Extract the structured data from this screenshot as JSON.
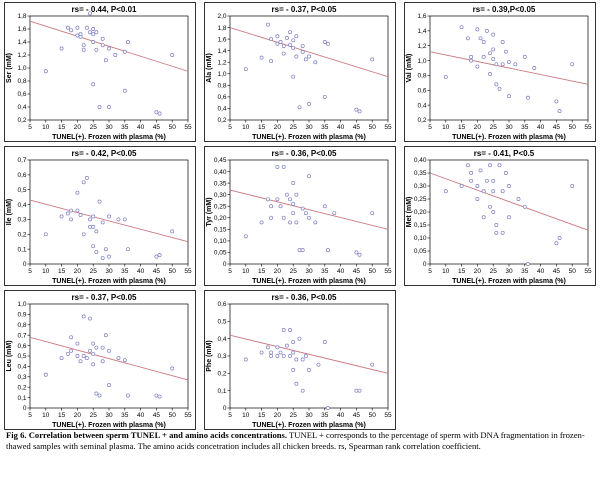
{
  "chart_data": [
    {
      "type": "scatter",
      "title": "rs= - 0.44, P<0.01",
      "xlabel": "TUNEL(+). Frozen with plasma (%)",
      "ylabel": "Ser (mM)",
      "xlim": [
        5,
        55
      ],
      "ylim": [
        0.2,
        1.8
      ],
      "xticks": [
        "5",
        "10",
        "15",
        "20",
        "25",
        "30",
        "35",
        "40",
        "45",
        "50",
        "55"
      ],
      "yticks": [
        "0,2",
        "0,4",
        "0,6",
        "0,8",
        "1,0",
        "1,2",
        "1,4",
        "1,6",
        "1,8"
      ],
      "fit": [
        [
          5,
          1.72
        ],
        [
          55,
          0.95
        ]
      ],
      "points": [
        [
          10,
          0.95
        ],
        [
          15,
          1.3
        ],
        [
          17,
          1.62
        ],
        [
          18,
          1.58
        ],
        [
          20,
          1.62
        ],
        [
          20,
          1.5
        ],
        [
          21,
          1.52
        ],
        [
          21,
          1.48
        ],
        [
          22,
          1.35
        ],
        [
          22,
          1.28
        ],
        [
          23,
          1.62
        ],
        [
          24,
          1.55
        ],
        [
          24,
          1.84
        ],
        [
          25,
          1.6
        ],
        [
          25,
          1.52
        ],
        [
          25,
          1.4
        ],
        [
          25,
          0.75
        ],
        [
          26,
          1.28
        ],
        [
          26,
          1.55
        ],
        [
          27,
          0.4
        ],
        [
          28,
          1.45
        ],
        [
          28,
          1.35
        ],
        [
          29,
          1.12
        ],
        [
          30,
          1.3
        ],
        [
          30,
          0.4
        ],
        [
          32,
          1.2
        ],
        [
          35,
          1.25
        ],
        [
          35,
          0.65
        ],
        [
          36,
          1.4
        ],
        [
          45,
          0.32
        ],
        [
          46,
          0.3
        ],
        [
          50,
          1.2
        ]
      ]
    },
    {
      "type": "scatter",
      "title": "rs= - 0.37, P<0.05",
      "xlabel": "TUNEL(+). Frozen with plasma (%)",
      "ylabel": "Ala (mM)",
      "xlim": [
        5,
        55
      ],
      "ylim": [
        0.2,
        2.0
      ],
      "xticks": [
        "5",
        "10",
        "15",
        "20",
        "25",
        "30",
        "35",
        "40",
        "45",
        "50",
        "55"
      ],
      "yticks": [
        "0,2",
        "0,4",
        "0,6",
        "0,8",
        "1,0",
        "1,2",
        "1,4",
        "1,6",
        "1,8",
        "2,0"
      ],
      "fit": [
        [
          5,
          1.8
        ],
        [
          55,
          0.95
        ]
      ],
      "points": [
        [
          10,
          1.08
        ],
        [
          15,
          1.28
        ],
        [
          17,
          1.85
        ],
        [
          18,
          1.6
        ],
        [
          18,
          1.22
        ],
        [
          20,
          1.65
        ],
        [
          20,
          1.52
        ],
        [
          21,
          1.55
        ],
        [
          22,
          1.48
        ],
        [
          22,
          1.35
        ],
        [
          23,
          1.62
        ],
        [
          24,
          1.5
        ],
        [
          24,
          1.72
        ],
        [
          25,
          1.58
        ],
        [
          25,
          1.45
        ],
        [
          25,
          0.95
        ],
        [
          26,
          1.3
        ],
        [
          26,
          1.65
        ],
        [
          27,
          0.42
        ],
        [
          28,
          1.48
        ],
        [
          28,
          1.38
        ],
        [
          29,
          1.25
        ],
        [
          30,
          1.3
        ],
        [
          30,
          0.48
        ],
        [
          32,
          1.2
        ],
        [
          35,
          1.55
        ],
        [
          35,
          0.6
        ],
        [
          36,
          1.52
        ],
        [
          45,
          0.38
        ],
        [
          46,
          0.35
        ],
        [
          50,
          1.25
        ]
      ]
    },
    {
      "type": "scatter",
      "title": "rs= - 0.39,P<0.05",
      "xlabel": "TUNEL(+). Frozen with plasma (%)",
      "ylabel": "Val (mM)",
      "xlim": [
        5,
        55
      ],
      "ylim": [
        0.2,
        1.6
      ],
      "xticks": [
        "5",
        "10",
        "15",
        "20",
        "25",
        "30",
        "35",
        "40",
        "45",
        "50",
        "55"
      ],
      "yticks": [
        "0,2",
        "0,4",
        "0,6",
        "0,8",
        "1,0",
        "1,2",
        "1,4",
        "1,6"
      ],
      "fit": [
        [
          5,
          1.12
        ],
        [
          55,
          0.68
        ]
      ],
      "points": [
        [
          10,
          0.78
        ],
        [
          15,
          1.45
        ],
        [
          17,
          1.3
        ],
        [
          18,
          1.05
        ],
        [
          18,
          1.0
        ],
        [
          20,
          1.42
        ],
        [
          20,
          0.92
        ],
        [
          21,
          1.3
        ],
        [
          22,
          1.25
        ],
        [
          22,
          1.05
        ],
        [
          23,
          1.4
        ],
        [
          24,
          1.1
        ],
        [
          24,
          0.82
        ],
        [
          25,
          1.35
        ],
        [
          25,
          1.15
        ],
        [
          25,
          1.02
        ],
        [
          26,
          0.95
        ],
        [
          26,
          0.68
        ],
        [
          27,
          0.62
        ],
        [
          28,
          1.25
        ],
        [
          28,
          0.95
        ],
        [
          29,
          1.12
        ],
        [
          30,
          0.98
        ],
        [
          30,
          0.52
        ],
        [
          32,
          0.95
        ],
        [
          35,
          1.05
        ],
        [
          36,
          0.5
        ],
        [
          38,
          0.9
        ],
        [
          45,
          0.45
        ],
        [
          46,
          0.32
        ],
        [
          50,
          0.95
        ]
      ]
    },
    {
      "type": "scatter",
      "title": "rs= - 0.42, P<0.05",
      "xlabel": "TUNEL(+). Frozen with plasma (%)",
      "ylabel": "Ile (mM)",
      "xlim": [
        5,
        55
      ],
      "ylim": [
        0.0,
        0.7
      ],
      "xticks": [
        "5",
        "10",
        "15",
        "20",
        "25",
        "30",
        "35",
        "40",
        "45",
        "50",
        "55"
      ],
      "yticks": [
        "0",
        "0,1",
        "0,2",
        "0,3",
        "0,4",
        "0,5",
        "0,6",
        "0,7"
      ],
      "fit": [
        [
          5,
          0.43
        ],
        [
          55,
          0.15
        ]
      ],
      "points": [
        [
          10,
          0.2
        ],
        [
          15,
          0.32
        ],
        [
          17,
          0.34
        ],
        [
          18,
          0.36
        ],
        [
          18,
          0.3
        ],
        [
          20,
          0.48
        ],
        [
          20,
          0.36
        ],
        [
          21,
          0.33
        ],
        [
          22,
          0.55
        ],
        [
          22,
          0.2
        ],
        [
          23,
          0.58
        ],
        [
          24,
          0.3
        ],
        [
          24,
          0.25
        ],
        [
          25,
          0.32
        ],
        [
          25,
          0.25
        ],
        [
          25,
          0.12
        ],
        [
          26,
          0.22
        ],
        [
          26,
          0.08
        ],
        [
          27,
          0.42
        ],
        [
          28,
          0.28
        ],
        [
          28,
          0.04
        ],
        [
          29,
          0.1
        ],
        [
          30,
          0.32
        ],
        [
          30,
          0.05
        ],
        [
          33,
          0.3
        ],
        [
          35,
          0.3
        ],
        [
          36,
          0.1
        ],
        [
          45,
          0.05
        ],
        [
          46,
          0.06
        ],
        [
          50,
          0.22
        ]
      ]
    },
    {
      "type": "scatter",
      "title": "rs= - 0.36, P<0.05",
      "xlabel": "TUNEL(+). Frozen with plasma (%)",
      "ylabel": "Tyr (mM)",
      "xlim": [
        5,
        55
      ],
      "ylim": [
        0.0,
        0.45
      ],
      "xticks": [
        "5",
        "10",
        "15",
        "20",
        "25",
        "30",
        "35",
        "40",
        "45",
        "50",
        "55"
      ],
      "yticks": [
        "0",
        "0,05",
        "0,10",
        "0,15",
        "0,20",
        "0,25",
        "0,30",
        "0,35",
        "0,40",
        "0,45"
      ],
      "fit": [
        [
          5,
          0.32
        ],
        [
          55,
          0.15
        ]
      ],
      "points": [
        [
          10,
          0.12
        ],
        [
          15,
          0.18
        ],
        [
          17,
          0.28
        ],
        [
          18,
          0.25
        ],
        [
          18,
          0.2
        ],
        [
          20,
          0.42
        ],
        [
          20,
          0.28
        ],
        [
          21,
          0.25
        ],
        [
          22,
          0.42
        ],
        [
          22,
          0.2
        ],
        [
          23,
          0.3
        ],
        [
          24,
          0.28
        ],
        [
          24,
          0.18
        ],
        [
          25,
          0.35
        ],
        [
          25,
          0.26
        ],
        [
          25,
          0.22
        ],
        [
          26,
          0.18
        ],
        [
          26,
          0.3
        ],
        [
          27,
          0.06
        ],
        [
          28,
          0.24
        ],
        [
          28,
          0.06
        ],
        [
          29,
          0.22
        ],
        [
          30,
          0.38
        ],
        [
          30,
          0.2
        ],
        [
          32,
          0.18
        ],
        [
          35,
          0.25
        ],
        [
          36,
          0.06
        ],
        [
          38,
          0.22
        ],
        [
          45,
          0.05
        ],
        [
          46,
          0.04
        ],
        [
          50,
          0.22
        ]
      ]
    },
    {
      "type": "scatter",
      "title": "rs= - 0.41, P<0.5",
      "xlabel": "TUNEL(+). Frozen with plasma (%)",
      "ylabel": "Met (mM)",
      "xlim": [
        5,
        55
      ],
      "ylim": [
        0.0,
        0.4
      ],
      "xticks": [
        "5",
        "10",
        "15",
        "20",
        "25",
        "30",
        "35",
        "40",
        "45",
        "50",
        "55"
      ],
      "yticks": [
        "0",
        "0,05",
        "0,10",
        "0,15",
        "0,20",
        "0,25",
        "0,30",
        "0,35",
        "0,40"
      ],
      "fit": [
        [
          5,
          0.35
        ],
        [
          55,
          0.13
        ]
      ],
      "points": [
        [
          10,
          0.28
        ],
        [
          15,
          0.3
        ],
        [
          17,
          0.38
        ],
        [
          18,
          0.32
        ],
        [
          18,
          0.35
        ],
        [
          20,
          0.3
        ],
        [
          20,
          0.25
        ],
        [
          21,
          0.36
        ],
        [
          22,
          0.28
        ],
        [
          22,
          0.18
        ],
        [
          23,
          0.32
        ],
        [
          24,
          0.22
        ],
        [
          24,
          0.38
        ],
        [
          25,
          0.32
        ],
        [
          25,
          0.28
        ],
        [
          25,
          0.2
        ],
        [
          26,
          0.15
        ],
        [
          26,
          0.12
        ],
        [
          27,
          0.38
        ],
        [
          28,
          0.28
        ],
        [
          28,
          0.12
        ],
        [
          29,
          0.35
        ],
        [
          30,
          0.3
        ],
        [
          30,
          0.18
        ],
        [
          33,
          0.25
        ],
        [
          35,
          0.22
        ],
        [
          36,
          0.0
        ],
        [
          45,
          0.08
        ],
        [
          46,
          0.1
        ],
        [
          50,
          0.3
        ]
      ]
    },
    {
      "type": "scatter",
      "title": "rs= - 0.37, P<0.05",
      "xlabel": "TUNEL(+). Frozen with plasma (%)",
      "ylabel": "Leu (mM)",
      "xlim": [
        5,
        55
      ],
      "ylim": [
        0.0,
        1.0
      ],
      "xticks": [
        "5",
        "10",
        "15",
        "20",
        "25",
        "30",
        "35",
        "40",
        "45",
        "50",
        "55"
      ],
      "yticks": [
        "0",
        "0,1",
        "0,2",
        "0,3",
        "0,4",
        "0,5",
        "0,6",
        "0,7",
        "0,8",
        "0,9",
        "1,0"
      ],
      "fit": [
        [
          5,
          0.68
        ],
        [
          55,
          0.27
        ]
      ],
      "points": [
        [
          10,
          0.32
        ],
        [
          15,
          0.48
        ],
        [
          17,
          0.52
        ],
        [
          18,
          0.68
        ],
        [
          18,
          0.55
        ],
        [
          20,
          0.62
        ],
        [
          20,
          0.5
        ],
        [
          21,
          0.45
        ],
        [
          22,
          0.88
        ],
        [
          22,
          0.5
        ],
        [
          23,
          0.48
        ],
        [
          24,
          0.86
        ],
        [
          24,
          0.55
        ],
        [
          25,
          0.62
        ],
        [
          25,
          0.52
        ],
        [
          25,
          0.42
        ],
        [
          26,
          0.58
        ],
        [
          26,
          0.14
        ],
        [
          27,
          0.12
        ],
        [
          28,
          0.58
        ],
        [
          28,
          0.45
        ],
        [
          29,
          0.7
        ],
        [
          30,
          0.22
        ],
        [
          30,
          0.55
        ],
        [
          33,
          0.48
        ],
        [
          35,
          0.46
        ],
        [
          36,
          0.12
        ],
        [
          45,
          0.12
        ],
        [
          46,
          0.11
        ],
        [
          50,
          0.38
        ]
      ]
    },
    {
      "type": "scatter",
      "title": "rs= - 0.36, P<0.05",
      "xlabel": "TUNEL(+). Frozen with plasma (%)",
      "ylabel": "Phe (mM)",
      "xlim": [
        5,
        55
      ],
      "ylim": [
        0.0,
        0.6
      ],
      "xticks": [
        "5",
        "10",
        "15",
        "20",
        "25",
        "30",
        "35",
        "40",
        "45",
        "50",
        "55"
      ],
      "yticks": [
        "0",
        "0,1",
        "0,2",
        "0,3",
        "0,4",
        "0,5",
        "0,6"
      ],
      "fit": [
        [
          5,
          0.42
        ],
        [
          55,
          0.2
        ]
      ],
      "points": [
        [
          10,
          0.28
        ],
        [
          15,
          0.32
        ],
        [
          17,
          0.35
        ],
        [
          18,
          0.32
        ],
        [
          18,
          0.3
        ],
        [
          20,
          0.35
        ],
        [
          20,
          0.3
        ],
        [
          21,
          0.32
        ],
        [
          22,
          0.45
        ],
        [
          22,
          0.3
        ],
        [
          23,
          0.36
        ],
        [
          24,
          0.45
        ],
        [
          24,
          0.3
        ],
        [
          25,
          0.38
        ],
        [
          25,
          0.32
        ],
        [
          25,
          0.22
        ],
        [
          26,
          0.28
        ],
        [
          26,
          0.14
        ],
        [
          27,
          0.4
        ],
        [
          28,
          0.28
        ],
        [
          28,
          0.1
        ],
        [
          29,
          0.3
        ],
        [
          30,
          0.22
        ],
        [
          33,
          0.25
        ],
        [
          35,
          0.38
        ],
        [
          36,
          0.0
        ],
        [
          45,
          0.1
        ],
        [
          46,
          0.1
        ],
        [
          50,
          0.25
        ]
      ]
    }
  ],
  "caption": {
    "label": "Fig 6.",
    "heading": "Correlation between sperm TUNEL + and amino acids concentrations.",
    "body": "TUNEL + corresponds to the percentage of sperm with DNA fragmentation in frozen-thawed samples with seminal plasma. The amino acids concetration includes all chicken breeds. rs, Spearman rank correlation coefficient."
  }
}
